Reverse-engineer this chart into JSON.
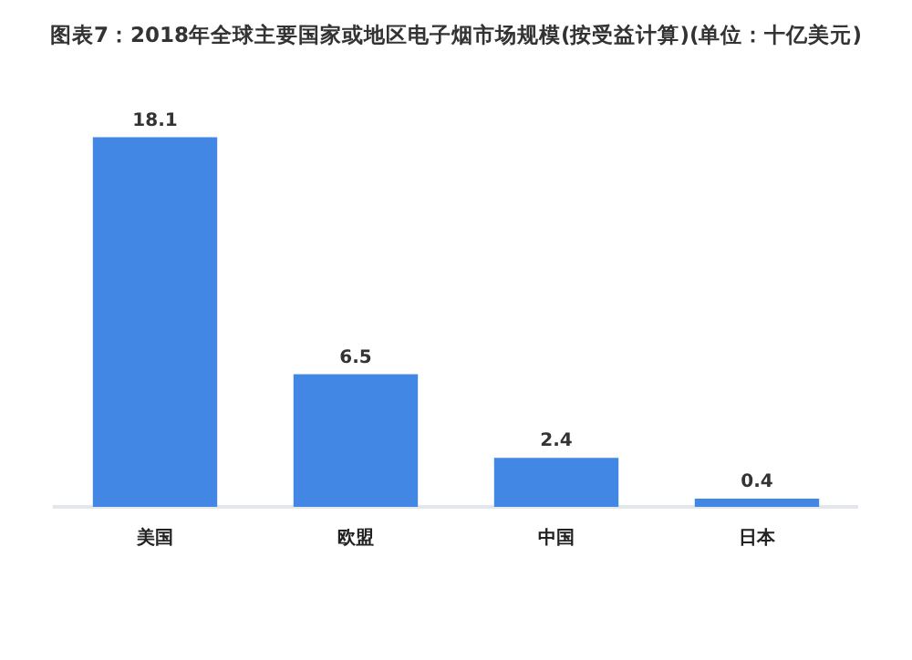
{
  "chart_data": {
    "type": "bar",
    "title": "图表7：2018年全球主要国家或地区电子烟市场规模(按受益计算)(单位：十亿美元)",
    "categories": [
      "美国",
      "欧盟",
      "中国",
      "日本"
    ],
    "values": [
      18.1,
      6.5,
      2.4,
      0.4
    ],
    "color": "#4287e3",
    "data_labels": true,
    "tick_labels": "x"
  }
}
